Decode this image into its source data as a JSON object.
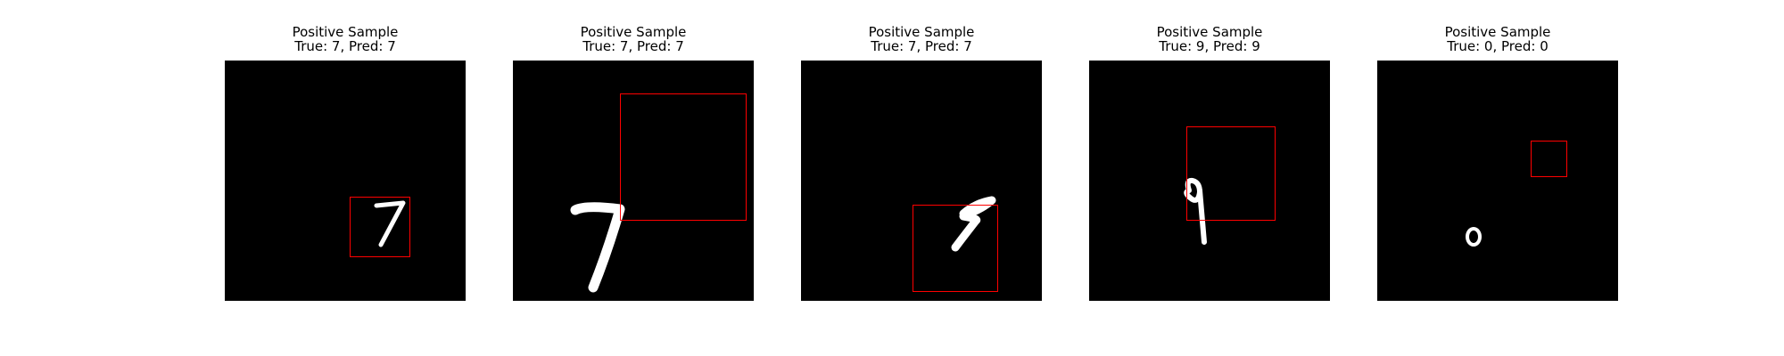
{
  "colors": {
    "background": "#ffffff",
    "image_background": "#000000",
    "digit": "#ffffff",
    "bbox": "#ff0000"
  },
  "samples": [
    {
      "title": "Positive Sample",
      "label": "True: 7, Pred: 7",
      "true": 7,
      "pred": 7
    },
    {
      "title": "Positive Sample",
      "label": "True: 7, Pred: 7",
      "true": 7,
      "pred": 7
    },
    {
      "title": "Positive Sample",
      "label": "True: 7, Pred: 7",
      "true": 7,
      "pred": 7
    },
    {
      "title": "Positive Sample",
      "label": "True: 9, Pred: 9",
      "true": 9,
      "pred": 9
    },
    {
      "title": "Positive Sample",
      "label": "True: 0, Pred: 0",
      "true": 0,
      "pred": 0
    }
  ]
}
